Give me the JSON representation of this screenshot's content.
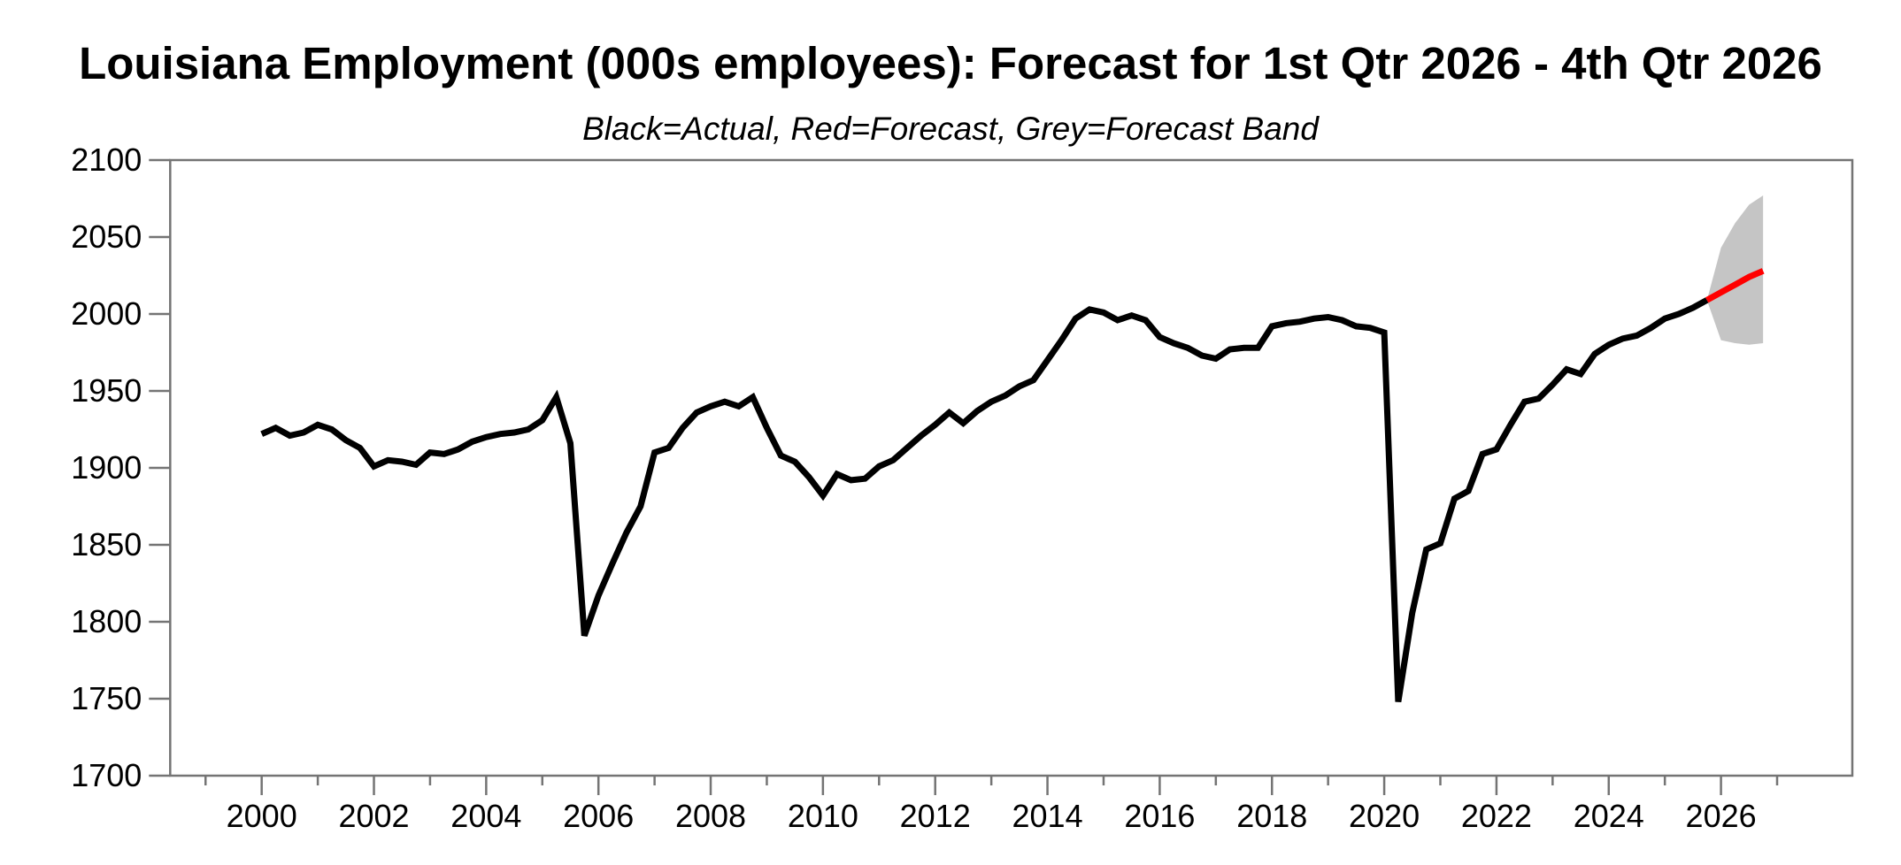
{
  "header": {
    "title": "Louisiana Employment (000s employees): Forecast for 1st Qtr 2026 - 4th Qtr 2026",
    "subtitle": "Black=Actual, Red=Forecast, Grey=Forecast Band"
  },
  "chart_data": {
    "type": "line",
    "title": "Louisiana Employment (000s employees): Forecast for 1st Qtr 2026 - 4th Qtr 2026",
    "subtitle": "Black=Actual, Red=Forecast, Grey=Forecast Band",
    "legend": [
      {
        "label": "Actual",
        "color": "#000000"
      },
      {
        "label": "Forecast",
        "color": "#ff0000"
      },
      {
        "label": "Forecast Band",
        "color": "#c5c5c5"
      }
    ],
    "x_axis": {
      "range": [
        1998.37,
        2028.34
      ],
      "ticks_major": [
        2000,
        2002,
        2004,
        2006,
        2008,
        2010,
        2012,
        2014,
        2016,
        2018,
        2020,
        2022,
        2024,
        2026
      ],
      "ticks_minor": [
        1999,
        2001,
        2003,
        2005,
        2007,
        2009,
        2011,
        2013,
        2015,
        2017,
        2019,
        2021,
        2023,
        2025,
        2027
      ]
    },
    "y_axis": {
      "range": [
        1700,
        2100
      ],
      "ticks": [
        1700,
        1750,
        1800,
        1850,
        1900,
        1950,
        2000,
        2050,
        2100
      ]
    },
    "grid": false,
    "frame_color": "#747474",
    "text_color": "#000000",
    "series": [
      {
        "name": "Actual",
        "color": "#000000",
        "width": 7,
        "start": 2000.0,
        "step": 0.25,
        "values": [
          1922,
          1926,
          1921,
          1923,
          1928,
          1925,
          1918,
          1913,
          1901,
          1905,
          1904,
          1902,
          1910,
          1909,
          1912,
          1917,
          1920,
          1922,
          1923,
          1925,
          1931,
          1946,
          1916,
          1791,
          1817,
          1838,
          1858,
          1875,
          1910,
          1913,
          1926,
          1936,
          1940,
          1943,
          1940,
          1946,
          1926,
          1908,
          1904,
          1894,
          1882,
          1896,
          1892,
          1893,
          1901,
          1905,
          1913,
          1921,
          1928,
          1936,
          1929,
          1937,
          1943,
          1947,
          1953,
          1957,
          1970,
          1983,
          1997,
          2003,
          2001,
          1996,
          1999,
          1996,
          1985,
          1981,
          1978,
          1973,
          1971,
          1977,
          1978,
          1978,
          1992,
          1994,
          1995,
          1997,
          1998,
          1996,
          1992,
          1991,
          1988,
          1748,
          1806,
          1847,
          1851,
          1880,
          1885,
          1909,
          1912,
          1928,
          1943,
          1945,
          1954,
          1964,
          1961,
          1974,
          1980,
          1984,
          1986,
          1991,
          1997,
          2000,
          2004,
          2009
        ]
      },
      {
        "name": "Forecast",
        "color": "#ff0000",
        "width": 7,
        "start": 2025.75,
        "step": 0.25,
        "values": [
          2009,
          2014,
          2019,
          2024,
          2028
        ]
      }
    ],
    "band": {
      "name": "Forecast Band",
      "color": "#c5c5c5",
      "start": 2025.75,
      "step": 0.25,
      "upper": [
        2009,
        2043,
        2059,
        2071,
        2077
      ],
      "lower": [
        2009,
        1983,
        1981,
        1980,
        1981
      ]
    }
  }
}
